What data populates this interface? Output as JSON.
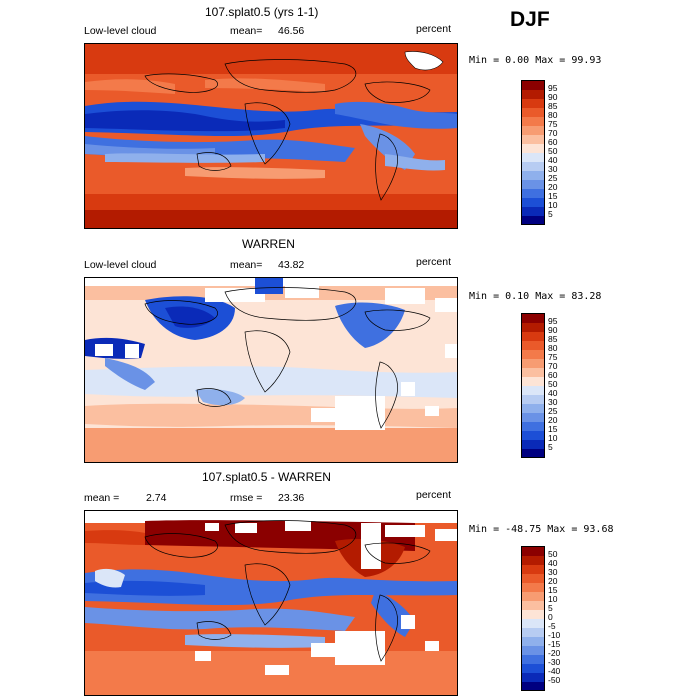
{
  "season": "DJF",
  "panels": [
    {
      "title": "107.splat0.5 (yrs 1-1)",
      "left_label": "Low-level cloud",
      "stat_label": "mean=",
      "stat_value": "46.56",
      "right_label": "percent",
      "minmax": "Min =    0.00 Max =   99.93",
      "colorbar": {
        "labels": [
          "95",
          "90",
          "85",
          "80",
          "75",
          "70",
          "60",
          "50",
          "40",
          "30",
          "25",
          "20",
          "15",
          "10",
          "5"
        ],
        "colors": [
          "#8b0000",
          "#b31b00",
          "#d83a10",
          "#ea5a2a",
          "#f37a4a",
          "#f79c72",
          "#fbbfa0",
          "#fde4d6",
          "#dbe6f8",
          "#b7ccf2",
          "#8fb0ec",
          "#6a92e6",
          "#3f70e0",
          "#1c4fd6",
          "#0a2ab8",
          "#000080"
        ]
      }
    },
    {
      "title": "WARREN",
      "left_label": "Low-level cloud",
      "stat_label": "mean=",
      "stat_value": "43.82",
      "right_label": "percent",
      "minmax": "Min =    0.10 Max =   83.28",
      "colorbar": {
        "labels": [
          "95",
          "90",
          "85",
          "80",
          "75",
          "70",
          "60",
          "50",
          "40",
          "30",
          "25",
          "20",
          "15",
          "10",
          "5"
        ],
        "colors": [
          "#8b0000",
          "#b31b00",
          "#d83a10",
          "#ea5a2a",
          "#f37a4a",
          "#f79c72",
          "#fbbfa0",
          "#fde4d6",
          "#dbe6f8",
          "#b7ccf2",
          "#8fb0ec",
          "#6a92e6",
          "#3f70e0",
          "#1c4fd6",
          "#0a2ab8",
          "#000080"
        ]
      }
    },
    {
      "title": "107.splat0.5 - WARREN",
      "left_label": "mean =",
      "stat_label": "rmse =",
      "stat_value": "23.36",
      "mean_value": "2.74",
      "right_label": "percent",
      "minmax": "Min = -48.75 Max =   93.68",
      "colorbar": {
        "labels": [
          "50",
          "40",
          "30",
          "20",
          "15",
          "10",
          "5",
          "0",
          "-5",
          "-10",
          "-15",
          "-20",
          "-30",
          "-40",
          "-50"
        ],
        "colors": [
          "#8b0000",
          "#b31b00",
          "#d83a10",
          "#ea5a2a",
          "#f37a4a",
          "#f79c72",
          "#fbbfa0",
          "#fde4d6",
          "#dbe6f8",
          "#b7ccf2",
          "#8fb0ec",
          "#6a92e6",
          "#3f70e0",
          "#1c4fd6",
          "#0a2ab8",
          "#000080"
        ]
      }
    }
  ]
}
